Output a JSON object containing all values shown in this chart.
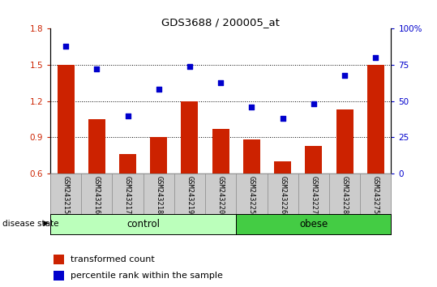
{
  "title": "GDS3688 / 200005_at",
  "samples": [
    "GSM243215",
    "GSM243216",
    "GSM243217",
    "GSM243218",
    "GSM243219",
    "GSM243220",
    "GSM243225",
    "GSM243226",
    "GSM243227",
    "GSM243228",
    "GSM243275"
  ],
  "transformed_count": [
    1.5,
    1.05,
    0.76,
    0.9,
    1.2,
    0.97,
    0.88,
    0.7,
    0.83,
    1.13,
    1.5
  ],
  "percentile_rank": [
    88,
    72,
    40,
    58,
    74,
    63,
    46,
    38,
    48,
    68,
    80
  ],
  "n_control": 6,
  "n_obese": 5,
  "bar_color": "#cc2200",
  "dot_color": "#0000cc",
  "ylim_left": [
    0.6,
    1.8
  ],
  "ylim_right": [
    0,
    100
  ],
  "yticks_left": [
    0.6,
    0.9,
    1.2,
    1.5,
    1.8
  ],
  "yticks_right": [
    0,
    25,
    50,
    75,
    100
  ],
  "ytick_labels_right": [
    "0",
    "25",
    "50",
    "75",
    "100%"
  ],
  "control_color": "#bbffbb",
  "obese_color": "#44cc44",
  "right_axis_color": "#0000cc",
  "legend_bar_label": "transformed count",
  "legend_dot_label": "percentile rank within the sample",
  "disease_state_label": "disease state",
  "control_label": "control",
  "obese_label": "obese",
  "bar_width": 0.55,
  "xtick_area_color": "#cccccc",
  "xtick_area_border_color": "#888888"
}
